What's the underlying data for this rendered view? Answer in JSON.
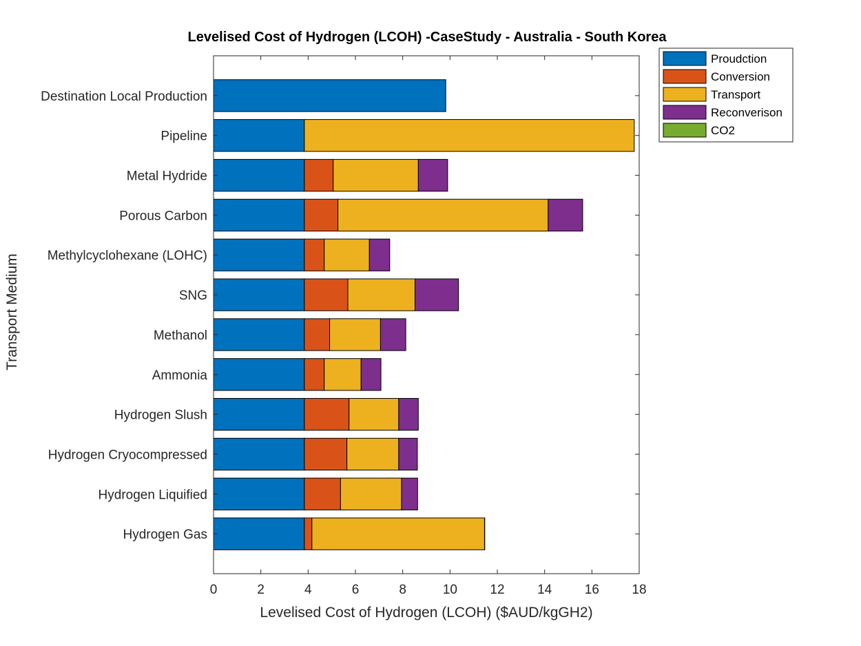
{
  "chart_data": {
    "type": "bar",
    "orientation": "horizontal",
    "stacked": true,
    "title": "Levelised Cost of Hydrogen (LCOH) -CaseStudy - Australia - South Korea",
    "xlabel": "Levelised Cost of Hydrogen (LCOH) ($AUD/kgGH2)",
    "ylabel": "Transport Medium",
    "xlim": [
      0,
      18
    ],
    "xticks": [
      0,
      2,
      4,
      6,
      8,
      10,
      12,
      14,
      16,
      18
    ],
    "legend_position": "outside-top-right",
    "grid": false,
    "categories": [
      "Destination Local Production",
      "Pipeline",
      "Metal Hydride",
      "Porous Carbon",
      "Methylcyclohexane (LOHC)",
      "SNG",
      "Methanol",
      "Ammonia",
      "Hydrogen Slush",
      "Hydrogen Cryocompressed",
      "Hydrogen Liquified",
      "Hydrogen Gas"
    ],
    "series": [
      {
        "name": "Proudction",
        "color": "#0072BD",
        "values": [
          9.82,
          3.84,
          3.84,
          3.84,
          3.84,
          3.84,
          3.84,
          3.84,
          3.84,
          3.84,
          3.84,
          3.84
        ]
      },
      {
        "name": "Conversion",
        "color": "#D95319",
        "values": [
          0,
          0,
          1.22,
          1.42,
          0.84,
          1.84,
          1.07,
          0.84,
          1.89,
          1.8,
          1.53,
          0.32
        ]
      },
      {
        "name": "Transport",
        "color": "#EDB120",
        "values": [
          0,
          13.95,
          3.6,
          8.89,
          1.91,
          2.84,
          2.15,
          1.56,
          2.1,
          2.19,
          2.58,
          7.3
        ]
      },
      {
        "name": "Reconverison",
        "color": "#7E2F8E",
        "values": [
          0,
          0,
          1.24,
          1.46,
          0.86,
          1.84,
          1.07,
          0.84,
          0.83,
          0.79,
          0.68,
          0.01
        ]
      },
      {
        "name": "CO2",
        "color": "#77AC30",
        "values": [
          0,
          0,
          0,
          0,
          0,
          0,
          0,
          0,
          0,
          0,
          0,
          0
        ]
      }
    ]
  }
}
